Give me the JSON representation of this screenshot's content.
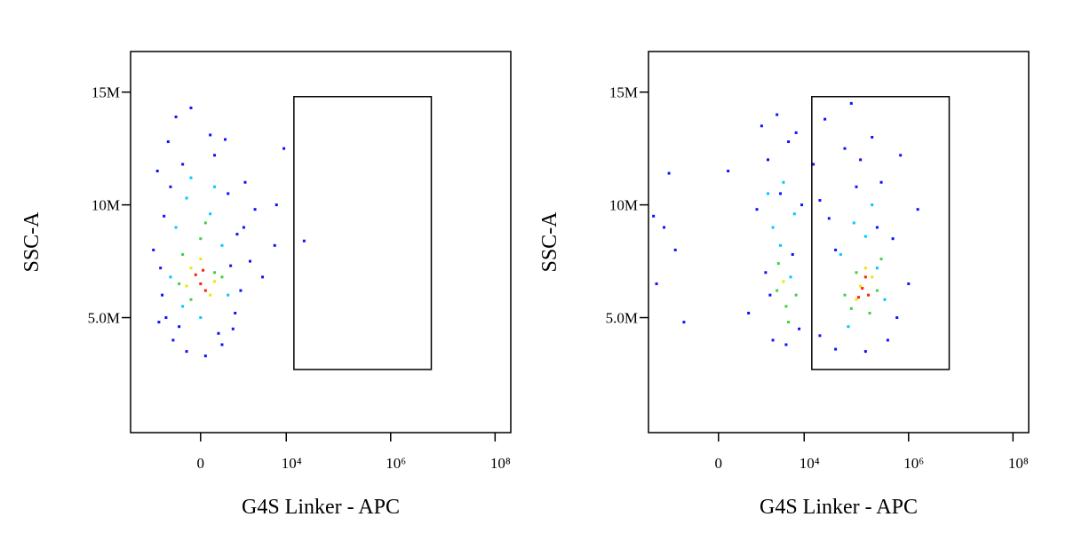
{
  "chart_data": [
    {
      "type": "scatter",
      "xlabel": "G4S Linker - APC",
      "ylabel": "SSC-A",
      "xscale": "logicle",
      "xlim": [
        -5000,
        200000000
      ],
      "ylim": [
        -100000,
        16800000
      ],
      "xticks": [
        0,
        {
          "value": 10000,
          "label": "10⁴"
        },
        {
          "value": 1000000,
          "label": "10⁶"
        },
        {
          "value": 100000000,
          "label": "10⁸"
        }
      ],
      "yticks": [
        {
          "value": 5000000,
          "label": "5.0M"
        },
        {
          "value": 10000000,
          "label": "10M"
        },
        {
          "value": 15000000,
          "label": "15M"
        }
      ],
      "gate": {
        "x": [
          14000,
          6000000
        ],
        "y": [
          2700000,
          14800000
        ]
      },
      "series": [
        {
          "color": "#1010ff",
          "x": [
            -1800,
            -1500,
            -1200,
            -1400,
            -900,
            -700,
            -1100,
            -600,
            -300,
            -200,
            100,
            300,
            500,
            700,
            900,
            1100,
            1300,
            1600,
            2000,
            2500,
            3500,
            6000,
            9000,
            6500,
            -800,
            -400,
            200,
            600,
            1000,
            -1000,
            1500,
            400,
            -500,
            800,
            -1300,
            22000
          ],
          "y": [
            8000000,
            11500000,
            6000000,
            4800000,
            12800000,
            4000000,
            9500000,
            13900000,
            3500000,
            14300000,
            3300000,
            12200000,
            3800000,
            10500000,
            4500000,
            8700000,
            6200000,
            11000000,
            7500000,
            9800000,
            6800000,
            8200000,
            12500000,
            10000000,
            10800000,
            11800000,
            13100000,
            12900000,
            5200000,
            5000000,
            9000000,
            4300000,
            4600000,
            7300000,
            7200000,
            8400000
          ]
        },
        {
          "color": "#00c8ff",
          "x": [
            -600,
            -300,
            200,
            500,
            -800,
            700,
            0,
            -400,
            300,
            -200
          ],
          "y": [
            9000000,
            10300000,
            9600000,
            8200000,
            6800000,
            6000000,
            5000000,
            5500000,
            10800000,
            11200000
          ]
        },
        {
          "color": "#40d040",
          "x": [
            -400,
            0,
            300,
            -200,
            500,
            100,
            -500
          ],
          "y": [
            7800000,
            8500000,
            7000000,
            5800000,
            6800000,
            9200000,
            6500000
          ]
        },
        {
          "color": "#e8e800",
          "x": [
            -200,
            200,
            0,
            300,
            -300
          ],
          "y": [
            7200000,
            6000000,
            7600000,
            6600000,
            6400000
          ]
        },
        {
          "color": "#ff2000",
          "x": [
            0,
            -100,
            100,
            50
          ],
          "y": [
            6500000,
            6900000,
            6200000,
            7100000
          ]
        }
      ]
    },
    {
      "type": "scatter",
      "xlabel": "G4S Linker - APC",
      "ylabel": "SSC-A",
      "xscale": "logicle",
      "xlim": [
        -5000,
        200000000
      ],
      "ylim": [
        -100000,
        16800000
      ],
      "xticks": [
        0,
        {
          "value": 10000,
          "label": "10⁴"
        },
        {
          "value": 1000000,
          "label": "10⁶"
        },
        {
          "value": 100000000,
          "label": "10⁸"
        }
      ],
      "yticks": [
        {
          "value": 5000000,
          "label": "5.0M"
        },
        {
          "value": 10000000,
          "label": "10M"
        },
        {
          "value": 15000000,
          "label": "15M"
        }
      ],
      "gate": {
        "x": [
          14000,
          6000000
        ],
        "y": [
          2700000,
          14800000
        ]
      },
      "series": [
        {
          "color": "#1010ff",
          "x": [
            -4000,
            -3500,
            -2500,
            -1500,
            -1000,
            200,
            800,
            1200,
            1500,
            2000,
            2500,
            3000,
            3500,
            4500,
            5000,
            6000,
            7000,
            8000,
            1800,
            2200,
            9000,
            15000,
            20000,
            25000,
            30000,
            40000,
            60000,
            80000,
            100000,
            150000,
            200000,
            300000,
            400000,
            500000,
            700000,
            1000000,
            1500000,
            600000,
            40000,
            20000,
            250000,
            120000,
            -2000
          ],
          "y": [
            9500000,
            6500000,
            9000000,
            8000000,
            4800000,
            11500000,
            5200000,
            9800000,
            13500000,
            12000000,
            4000000,
            14000000,
            10500000,
            3800000,
            12800000,
            7800000,
            13200000,
            4500000,
            7000000,
            6000000,
            10000000,
            11800000,
            4200000,
            13800000,
            9400000,
            3600000,
            12500000,
            14500000,
            10800000,
            3500000,
            13000000,
            11000000,
            4000000,
            8500000,
            12200000,
            6500000,
            9800000,
            5000000,
            8000000,
            10200000,
            9000000,
            12000000,
            11400000
          ]
        },
        {
          "color": "#00c8ff",
          "x": [
            2500,
            3500,
            4000,
            5500,
            6500,
            2000,
            50000,
            90000,
            150000,
            250000,
            350000,
            70000,
            200000
          ],
          "y": [
            9000000,
            8200000,
            11000000,
            6800000,
            9600000,
            10500000,
            7800000,
            9200000,
            8600000,
            7200000,
            5800000,
            4600000,
            10000000
          ]
        },
        {
          "color": "#40d040",
          "x": [
            3000,
            4500,
            3200,
            5000,
            7000,
            60000,
            100000,
            180000,
            250000,
            80000,
            300000
          ],
          "y": [
            6200000,
            5500000,
            7400000,
            4800000,
            6000000,
            6000000,
            7000000,
            5200000,
            6200000,
            5400000,
            7600000
          ]
        },
        {
          "color": "#e8e800",
          "x": [
            4000,
            100000,
            150000,
            200000,
            120000
          ],
          "y": [
            6600000,
            5800000,
            7200000,
            6800000,
            6400000
          ]
        },
        {
          "color": "#ff2000",
          "x": [
            130000,
            170000,
            150000,
            110000
          ],
          "y": [
            6300000,
            6000000,
            6800000,
            5900000
          ]
        }
      ]
    }
  ]
}
